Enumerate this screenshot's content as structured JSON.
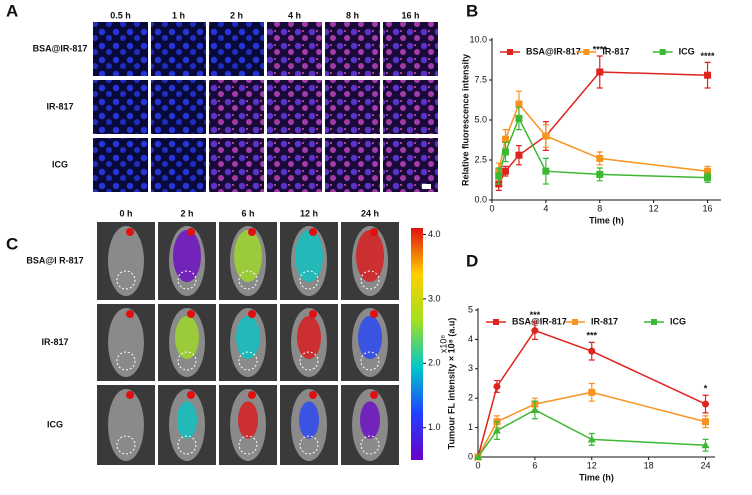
{
  "panel_labels": [
    "A",
    "B",
    "C",
    "D"
  ],
  "panel_a": {
    "columns": [
      "0.5 h",
      "1 h",
      "2 h",
      "4 h",
      "8 h",
      "16 h"
    ],
    "rows": [
      "BSA@IR-817",
      "IR-817",
      "ICG"
    ]
  },
  "panel_c": {
    "columns": [
      "0 h",
      "2 h",
      "6 h",
      "12 h",
      "24 h"
    ],
    "rows": [
      "BSA@I R-817",
      "IR-817",
      "ICG"
    ],
    "colorbar": {
      "unit": "x10⁸",
      "lim": [
        0.5,
        4.1
      ],
      "ticks": [
        {
          "value": 4,
          "label": "4.0"
        },
        {
          "value": 3,
          "label": "3.0"
        },
        {
          "value": 2,
          "label": "2.0"
        },
        {
          "value": 1,
          "label": "1.0"
        }
      ]
    }
  },
  "chart_data": [
    {
      "type": "line",
      "xlabel": "Time (h)",
      "ylabel": "Relative fluorescence intensity",
      "legend": "top",
      "xlim": [
        0,
        17
      ],
      "xticks": [
        0,
        4,
        8,
        12,
        16
      ],
      "ylim": [
        0,
        10
      ],
      "yticks": [
        {
          "value": 0,
          "label": "0.0"
        },
        {
          "value": 2.5,
          "label": "2.5"
        },
        {
          "value": 5,
          "label": "5.0"
        },
        {
          "value": 7.5,
          "label": "7.5"
        },
        {
          "value": 10,
          "label": "10.0"
        }
      ],
      "x": [
        0.5,
        1,
        2,
        4,
        8,
        16
      ],
      "series": [
        {
          "name": "BSA@IR-817",
          "color": "#e0231e",
          "marker": "square",
          "values": [
            1.0,
            1.8,
            2.8,
            4.0,
            8.0,
            7.8
          ],
          "errors": [
            0.4,
            0.3,
            0.6,
            0.9,
            1.0,
            0.8
          ]
        },
        {
          "name": "IR-817",
          "color": "#f7931e",
          "marker": "square",
          "values": [
            1.8,
            3.8,
            6.0,
            4.0,
            2.6,
            1.8
          ],
          "errors": [
            0.5,
            0.6,
            0.8,
            0.7,
            0.4,
            0.3
          ]
        },
        {
          "name": "ICG",
          "color": "#3cb832",
          "marker": "square",
          "values": [
            1.5,
            3.0,
            5.1,
            1.8,
            1.6,
            1.4
          ],
          "errors": [
            0.5,
            0.6,
            0.7,
            0.8,
            0.4,
            0.3
          ]
        }
      ],
      "annotations": [
        {
          "text": "****",
          "x": 8
        },
        {
          "text": "****",
          "x": 16
        }
      ]
    },
    {
      "type": "line",
      "xlabel": "Time (h)",
      "ylabel": "Tumour FL intensity × 10⁸ (a.u)",
      "legend": "top",
      "xlim": [
        0,
        25
      ],
      "xticks": [
        0,
        6,
        12,
        18,
        24
      ],
      "ylim": [
        0,
        5
      ],
      "yticks": [
        0,
        1,
        2,
        3,
        4,
        5
      ],
      "x": [
        0,
        2,
        6,
        12,
        24
      ],
      "series": [
        {
          "name": "BSA@IR-817",
          "color": "#e0231e",
          "marker": "circle",
          "values": [
            0,
            2.4,
            4.3,
            3.6,
            1.8
          ],
          "errors": [
            0,
            0.2,
            0.3,
            0.3,
            0.3
          ]
        },
        {
          "name": "IR-817",
          "color": "#f7931e",
          "marker": "square",
          "values": [
            0,
            1.2,
            1.8,
            2.2,
            1.2
          ],
          "errors": [
            0,
            0.2,
            0.2,
            0.3,
            0.2
          ]
        },
        {
          "name": "ICG",
          "color": "#3cb832",
          "marker": "triangle",
          "values": [
            0,
            0.9,
            1.6,
            0.6,
            0.4
          ],
          "errors": [
            0,
            0.3,
            0.3,
            0.2,
            0.2
          ]
        }
      ],
      "annotations": [
        {
          "text": "***",
          "x": 6
        },
        {
          "text": "***",
          "x": 12
        },
        {
          "text": "*",
          "x": 24
        }
      ]
    }
  ]
}
